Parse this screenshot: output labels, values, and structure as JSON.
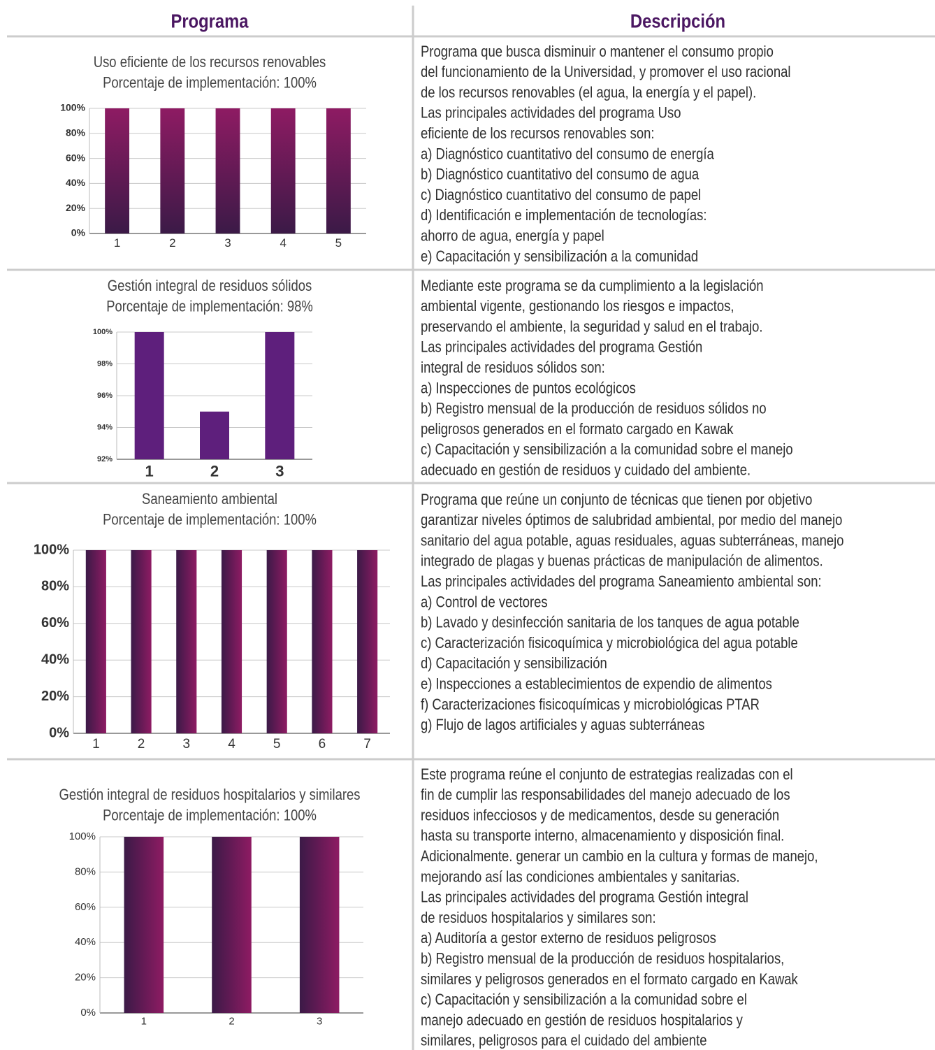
{
  "table": {
    "headers": [
      "Programa",
      "Descripción"
    ],
    "rows": [
      {
        "title": "Uso eficiente de los recursos renovables",
        "subtitle": "Porcentaje de implementación: 100%",
        "chart": {
          "type": "bar",
          "categories": [
            "1",
            "2",
            "3",
            "4",
            "5"
          ],
          "values": [
            100,
            100,
            100,
            100,
            100
          ],
          "ylim": [
            0,
            100
          ],
          "yticks": [
            {
              "value": 0,
              "label": "0%"
            },
            {
              "value": 20,
              "label": "20%"
            },
            {
              "value": 40,
              "label": "40%"
            },
            {
              "value": 60,
              "label": "60%"
            },
            {
              "value": 80,
              "label": "80%"
            },
            {
              "value": 100,
              "label": "100%"
            }
          ],
          "grid": true,
          "colors": [
            "#8e1b63",
            "#3b1a47"
          ],
          "gradient": "vertical"
        },
        "description": [
          "Programa que busca disminuir o mantener el consumo propio",
          "del funcionamiento de la Universidad, y promover el uso racional",
          "de los recursos renovables (el agua, la energía y el papel).",
          "Las principales actividades del programa Uso",
          "eficiente de los recursos renovables son:",
          "a) Diagnóstico cuantitativo del consumo de energía",
          "b) Diagnóstico cuantitativo del consumo de agua",
          "c) Diagnóstico cuantitativo del consumo de papel",
          "d) Identificación e implementación de tecnologías:",
          "ahorro de agua, energía y papel",
          "e) Capacitación y sensibilización a la comunidad"
        ]
      },
      {
        "title": "Gestión integral de residuos sólidos",
        "subtitle": "Porcentaje de implementación: 98%",
        "chart": {
          "type": "bar",
          "categories": [
            "1",
            "2",
            "3"
          ],
          "values": [
            100,
            95,
            100
          ],
          "ylim": [
            92,
            100
          ],
          "yticks": [
            {
              "value": 92,
              "label": "92%"
            },
            {
              "value": 94,
              "label": "94%"
            },
            {
              "value": 96,
              "label": "96%"
            },
            {
              "value": 98,
              "label": "98%"
            },
            {
              "value": 100,
              "label": "100%"
            }
          ],
          "grid": true,
          "colors": [
            "#5e1f7c",
            "#5e1f7c"
          ],
          "gradient": "none"
        },
        "description": [
          "Mediante este programa se da cumplimiento a la legislación",
          "ambiental vigente, gestionando los riesgos e impactos,",
          "preservando el ambiente, la seguridad y salud en el trabajo.",
          "Las principales actividades del programa Gestión",
          "integral de residuos sólidos son:",
          "a) Inspecciones de puntos ecológicos",
          "b) Registro mensual de la producción de residuos sólidos no",
          "peligrosos generados en el formato cargado en Kawak",
          "c) Capacitación y sensibilización a la comunidad sobre el manejo",
          "adecuado en gestión de residuos y cuidado del ambiente."
        ]
      },
      {
        "title": "Saneamiento ambiental",
        "subtitle": "Porcentaje de implementación: 100%",
        "chart": {
          "type": "bar",
          "categories": [
            "1",
            "2",
            "3",
            "4",
            "5",
            "6",
            "7"
          ],
          "values": [
            100,
            100,
            100,
            100,
            100,
            100,
            100
          ],
          "ylim": [
            0,
            100
          ],
          "yticks": [
            {
              "value": 0,
              "label": "0%"
            },
            {
              "value": 20,
              "label": "20%"
            },
            {
              "value": 40,
              "label": "40%"
            },
            {
              "value": 60,
              "label": "60%"
            },
            {
              "value": 80,
              "label": "80%"
            },
            {
              "value": 100,
              "label": "100%"
            }
          ],
          "grid": true,
          "colors": [
            "#3b1a47",
            "#8e1b63"
          ],
          "gradient": "horizontal"
        },
        "description": [
          "Programa que reúne un conjunto de técnicas que tienen por objetivo",
          "garantizar niveles óptimos de salubridad ambiental, por medio del manejo",
          "sanitario del agua potable, aguas residuales, aguas subterráneas, manejo",
          "integrado de plagas y buenas prácticas de manipulación de alimentos.",
          "Las principales actividades del programa Saneamiento ambiental son:",
          "a) Control de vectores",
          "b) Lavado y desinfección sanitaria de los tanques de agua potable",
          "c) Caracterización fisicoquímica y microbiológica del agua potable",
          "d) Capacitación y sensibilización",
          "e) Inspecciones a establecimientos de expendio de alimentos",
          "f) Caracterizaciones fisicoquímicas y microbiológicas PTAR",
          "g) Flujo de lagos artificiales y aguas subterráneas"
        ]
      },
      {
        "title": "Gestión integral de residuos hospitalarios y similares",
        "subtitle": "Porcentaje de implementación: 100%",
        "chart": {
          "type": "bar",
          "categories": [
            "1",
            "2",
            "3"
          ],
          "values": [
            100,
            100,
            100
          ],
          "ylim": [
            0,
            100
          ],
          "yticks": [
            {
              "value": 0,
              "label": "0%"
            },
            {
              "value": 20,
              "label": "20%"
            },
            {
              "value": 40,
              "label": "40%"
            },
            {
              "value": 60,
              "label": "60%"
            },
            {
              "value": 80,
              "label": "80%"
            },
            {
              "value": 100,
              "label": "100%"
            }
          ],
          "grid": true,
          "colors": [
            "#3b1a47",
            "#8e1b63"
          ],
          "gradient": "horizontal"
        },
        "description": [
          "Este programa reúne el conjunto de estrategias realizadas con el",
          "fin de cumplir las responsabilidades del manejo adecuado de los",
          "residuos infecciosos y de medicamentos, desde su generación",
          "hasta su transporte interno, almacenamiento y disposición final.",
          "Adicionalmente. generar un cambio en la cultura y formas de manejo,",
          "mejorando así las condiciones ambientales y sanitarias.",
          "Las principales actividades del programa Gestión integral",
          "de residuos hospitalarios y similares son:",
          "a) Auditoría a gestor externo de residuos peligrosos",
          "b) Registro mensual de la producción de residuos hospitalarios,",
          "similares y peligrosos generados en el formato cargado en Kawak",
          "c) Capacitación y sensibilización a la comunidad sobre el",
          "manejo adecuado en gestión de residuos hospitalarios y",
          "similares, peligrosos para el cuidado del ambiente"
        ]
      }
    ]
  }
}
